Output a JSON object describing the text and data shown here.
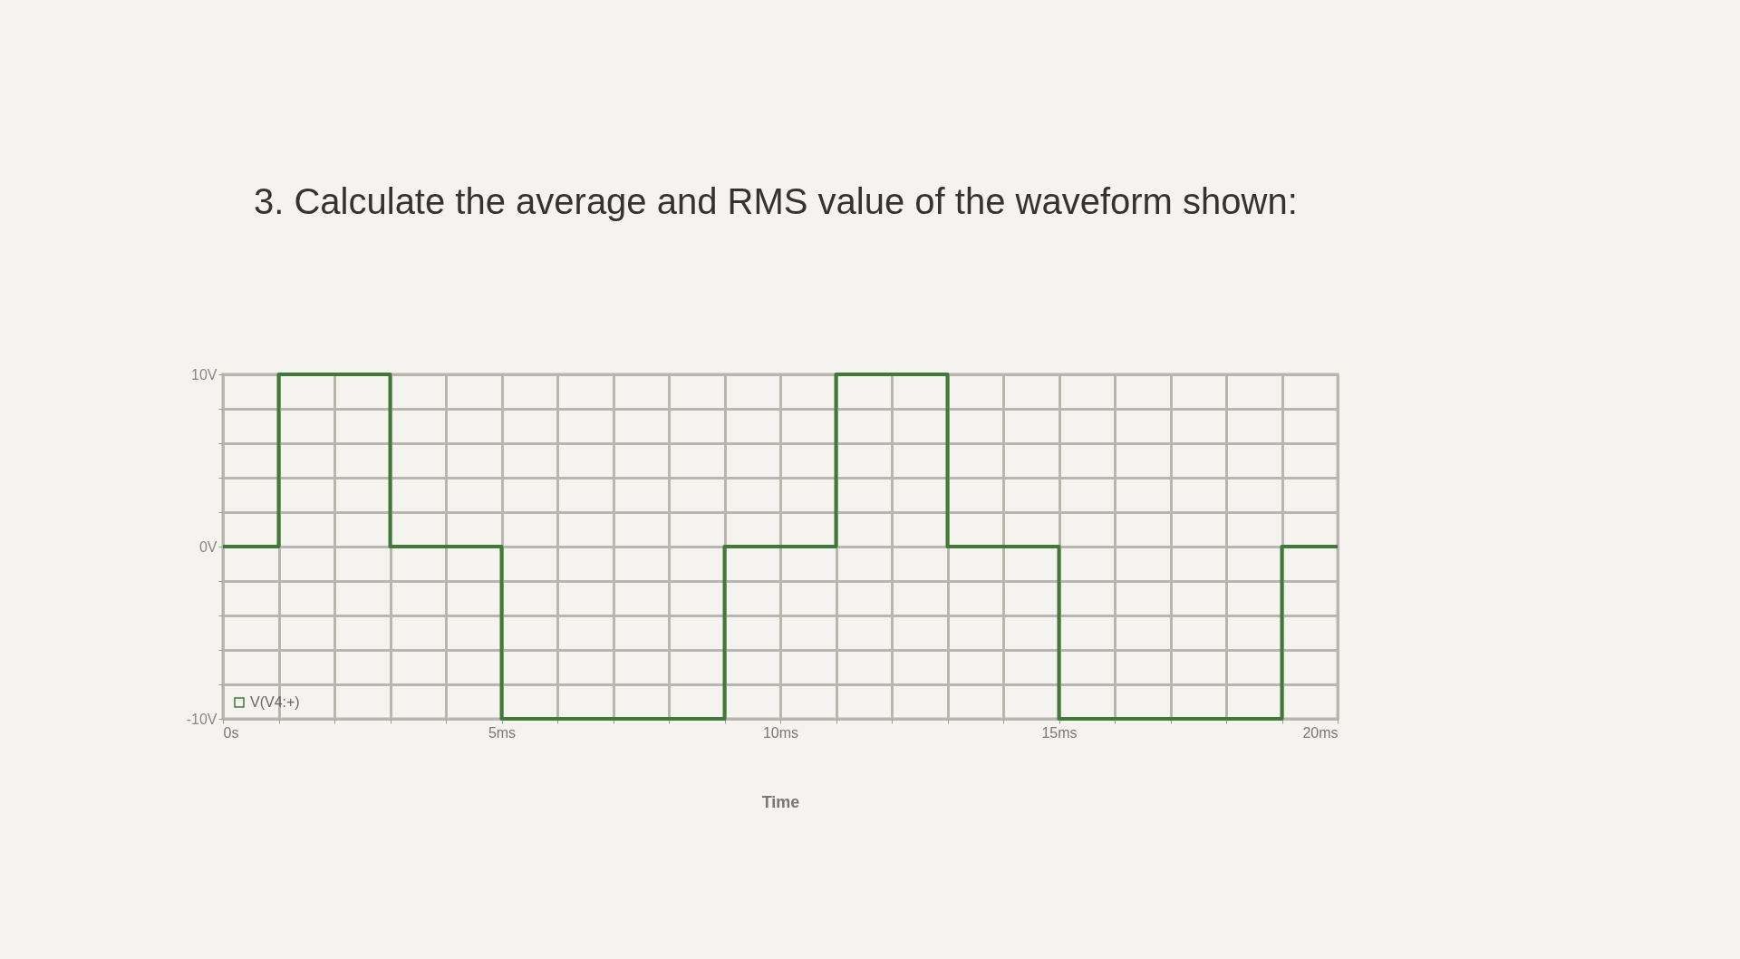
{
  "chart_data": {
    "type": "step",
    "title": "3. Calculate the average and RMS value of the waveform shown:",
    "xlabel": "Time",
    "x": [
      0,
      1,
      3,
      5,
      9,
      11,
      13,
      15,
      19,
      20
    ],
    "series": [
      {
        "name": "V(V4:+)",
        "color": "#3f7a36",
        "values": [
          0,
          10,
          0,
          -10,
          0,
          10,
          0,
          -10,
          0,
          0
        ]
      }
    ],
    "xlim": [
      0,
      20
    ],
    "xticks": [
      {
        "value": 0,
        "label": "0s"
      },
      {
        "value": 1,
        "label": null
      },
      {
        "value": 2,
        "label": null
      },
      {
        "value": 3,
        "label": null
      },
      {
        "value": 4,
        "label": null
      },
      {
        "value": 5,
        "label": "5ms"
      },
      {
        "value": 6,
        "label": null
      },
      {
        "value": 7,
        "label": null
      },
      {
        "value": 8,
        "label": null
      },
      {
        "value": 9,
        "label": null
      },
      {
        "value": 10,
        "label": "10ms"
      },
      {
        "value": 11,
        "label": null
      },
      {
        "value": 12,
        "label": null
      },
      {
        "value": 13,
        "label": null
      },
      {
        "value": 14,
        "label": null
      },
      {
        "value": 15,
        "label": "15ms"
      },
      {
        "value": 16,
        "label": null
      },
      {
        "value": 17,
        "label": null
      },
      {
        "value": 18,
        "label": null
      },
      {
        "value": 19,
        "label": null
      },
      {
        "value": 20,
        "label": "20ms"
      }
    ],
    "ylim": [
      -10,
      10
    ],
    "yticks": [
      {
        "value": -10,
        "label": "-10V"
      },
      {
        "value": -8,
        "label": null
      },
      {
        "value": -6,
        "label": null
      },
      {
        "value": -4,
        "label": null
      },
      {
        "value": -2,
        "label": null
      },
      {
        "value": 0,
        "label": "0V"
      },
      {
        "value": 2,
        "label": null
      },
      {
        "value": 4,
        "label": null
      },
      {
        "value": 6,
        "label": null
      },
      {
        "value": 8,
        "label": null
      },
      {
        "value": 10,
        "label": "10V"
      }
    ],
    "grid": true,
    "legend": "bottom left",
    "marker": "none",
    "line_style": "solid"
  }
}
